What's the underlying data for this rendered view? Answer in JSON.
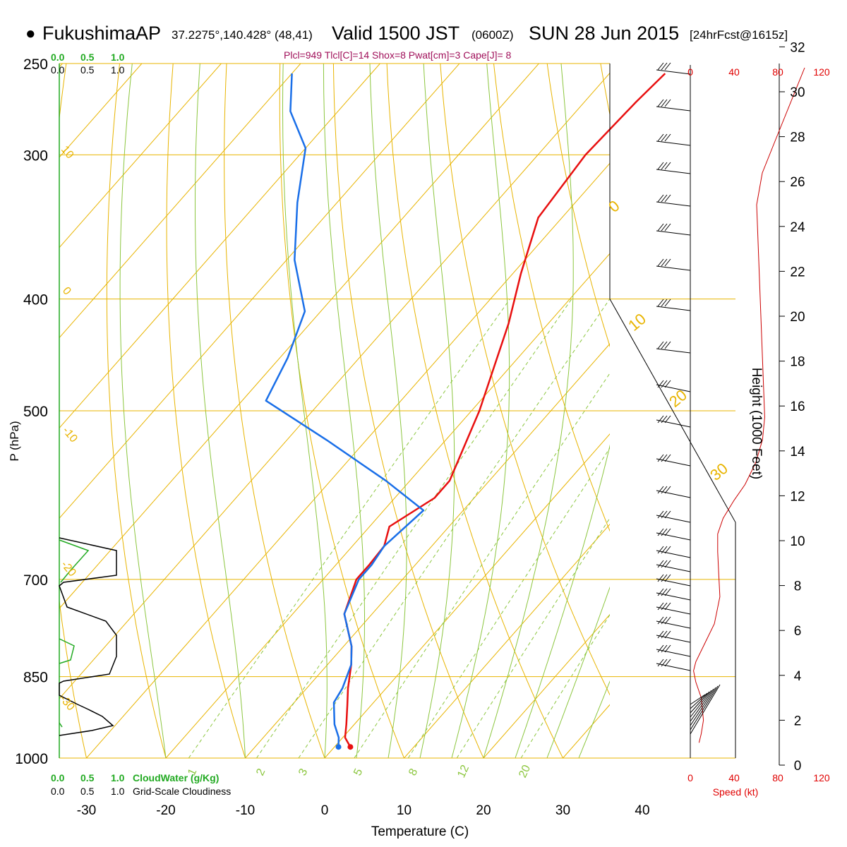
{
  "header": {
    "station": "FukushimaAP",
    "coords": "37.2275°,140.428° (48,41)",
    "valid_label": "Valid 1500 JST",
    "utc": "(0600Z)",
    "date": "SUN 28 Jun 2015",
    "forecast": "[24hrFcst@1615z]",
    "indices": "Plcl=949 Tlcl[C]=14 Shox=8 Pwat[cm]=3 Cape[J]= 8"
  },
  "colors": {
    "temperature": "#e81010",
    "dewpoint": "#1a6fe8",
    "isotherm": "#e8b400",
    "dry_adiabat": "#e8b400",
    "moist_adiabat": "#8cc63f",
    "mixing_ratio": "#8cc63f",
    "cloud_water": "#22aa22",
    "wind_speed": "#cc0000"
  },
  "chart_data": {
    "type": "line",
    "title": "",
    "xlabel": "Temperature (C)",
    "ylabel": "P (hPa)",
    "y_scale": "log",
    "x_ticks": [
      -30,
      -20,
      -10,
      0,
      10,
      20,
      30,
      40
    ],
    "y_ticks": [
      250,
      300,
      400,
      500,
      700,
      850,
      1000
    ],
    "series": [
      {
        "key": "temperature",
        "points": [
          [
            -33.0,
            255
          ],
          [
            -33.5,
            270
          ],
          [
            -34.0,
            300
          ],
          [
            -33.0,
            340
          ],
          [
            -29.0,
            380
          ],
          [
            -25.0,
            420
          ],
          [
            -21.5,
            465
          ],
          [
            -19.0,
            500
          ],
          [
            -16.8,
            540
          ],
          [
            -15.0,
            575
          ],
          [
            -15.0,
            595
          ],
          [
            -17.5,
            630
          ],
          [
            -16.0,
            655
          ],
          [
            -15.8,
            680
          ],
          [
            -15.8,
            700
          ],
          [
            -13.5,
            750
          ],
          [
            -9.0,
            800
          ],
          [
            -7.0,
            830
          ],
          [
            -4.8,
            870
          ],
          [
            -3.0,
            900
          ],
          [
            -1.0,
            935
          ],
          [
            0.3,
            960
          ],
          [
            2.0,
            978
          ]
        ]
      },
      {
        "key": "dewpoint",
        "points": [
          [
            -80.0,
            255
          ],
          [
            -76.0,
            275
          ],
          [
            -70.0,
            296
          ],
          [
            -65.0,
            330
          ],
          [
            -59.0,
            370
          ],
          [
            -52.0,
            410
          ],
          [
            -49.0,
            450
          ],
          [
            -47.0,
            490
          ],
          [
            -35.0,
            530
          ],
          [
            -23.0,
            575
          ],
          [
            -15.0,
            610
          ],
          [
            -16.0,
            655
          ],
          [
            -15.5,
            680
          ],
          [
            -15.5,
            700
          ],
          [
            -13.5,
            750
          ],
          [
            -9.0,
            800
          ],
          [
            -7.0,
            830
          ],
          [
            -5.5,
            870
          ],
          [
            -5.0,
            895
          ],
          [
            -2.5,
            935
          ],
          [
            -0.5,
            960
          ],
          [
            0.5,
            978
          ]
        ]
      }
    ],
    "isotherm_labels": [
      "10",
      "0",
      "-10",
      "-20",
      "-30"
    ],
    "dry_adiabat_labels": [
      "0",
      "10",
      "20",
      "30"
    ],
    "mixing_ratio_labels": [
      "1",
      "2",
      "3",
      "5",
      "8",
      "12",
      "20"
    ],
    "cloud_panel": {
      "scale_top_green": [
        "0.0",
        "0.5",
        "1.0"
      ],
      "scale_top_black": [
        "0.0",
        "0.5",
        "1.0"
      ],
      "legend_green": "CloudWater (g/Kg)",
      "legend_black": "Grid-Scale Cloudiness"
    },
    "wind_panel": {
      "speed_ticks": [
        "0",
        "40",
        "80",
        "120"
      ],
      "speed_label": "Speed (kt)",
      "height_ticks": [
        0,
        2,
        4,
        6,
        8,
        10,
        12,
        14,
        16,
        18,
        20,
        22,
        24,
        26,
        28,
        30,
        32
      ],
      "height_label": "Height (1000 Feet)",
      "wind_speed_profile": [
        [
          68,
          15.5
        ],
        [
          66,
          14.5
        ],
        [
          60,
          13.5
        ],
        [
          55,
          13.0
        ],
        [
          50,
          12.5
        ],
        [
          40,
          11.8
        ],
        [
          30,
          11.0
        ],
        [
          25,
          10.3
        ],
        [
          25,
          9.5
        ],
        [
          26,
          8.5
        ],
        [
          27,
          7.5
        ],
        [
          22,
          6.3
        ],
        [
          12,
          5.3
        ],
        [
          5,
          4.6
        ],
        [
          3,
          4.2
        ],
        [
          5,
          3.7
        ],
        [
          10,
          3.0
        ],
        [
          12,
          2.0
        ],
        [
          10,
          1.4
        ],
        [
          8,
          1.0
        ]
      ]
    }
  }
}
